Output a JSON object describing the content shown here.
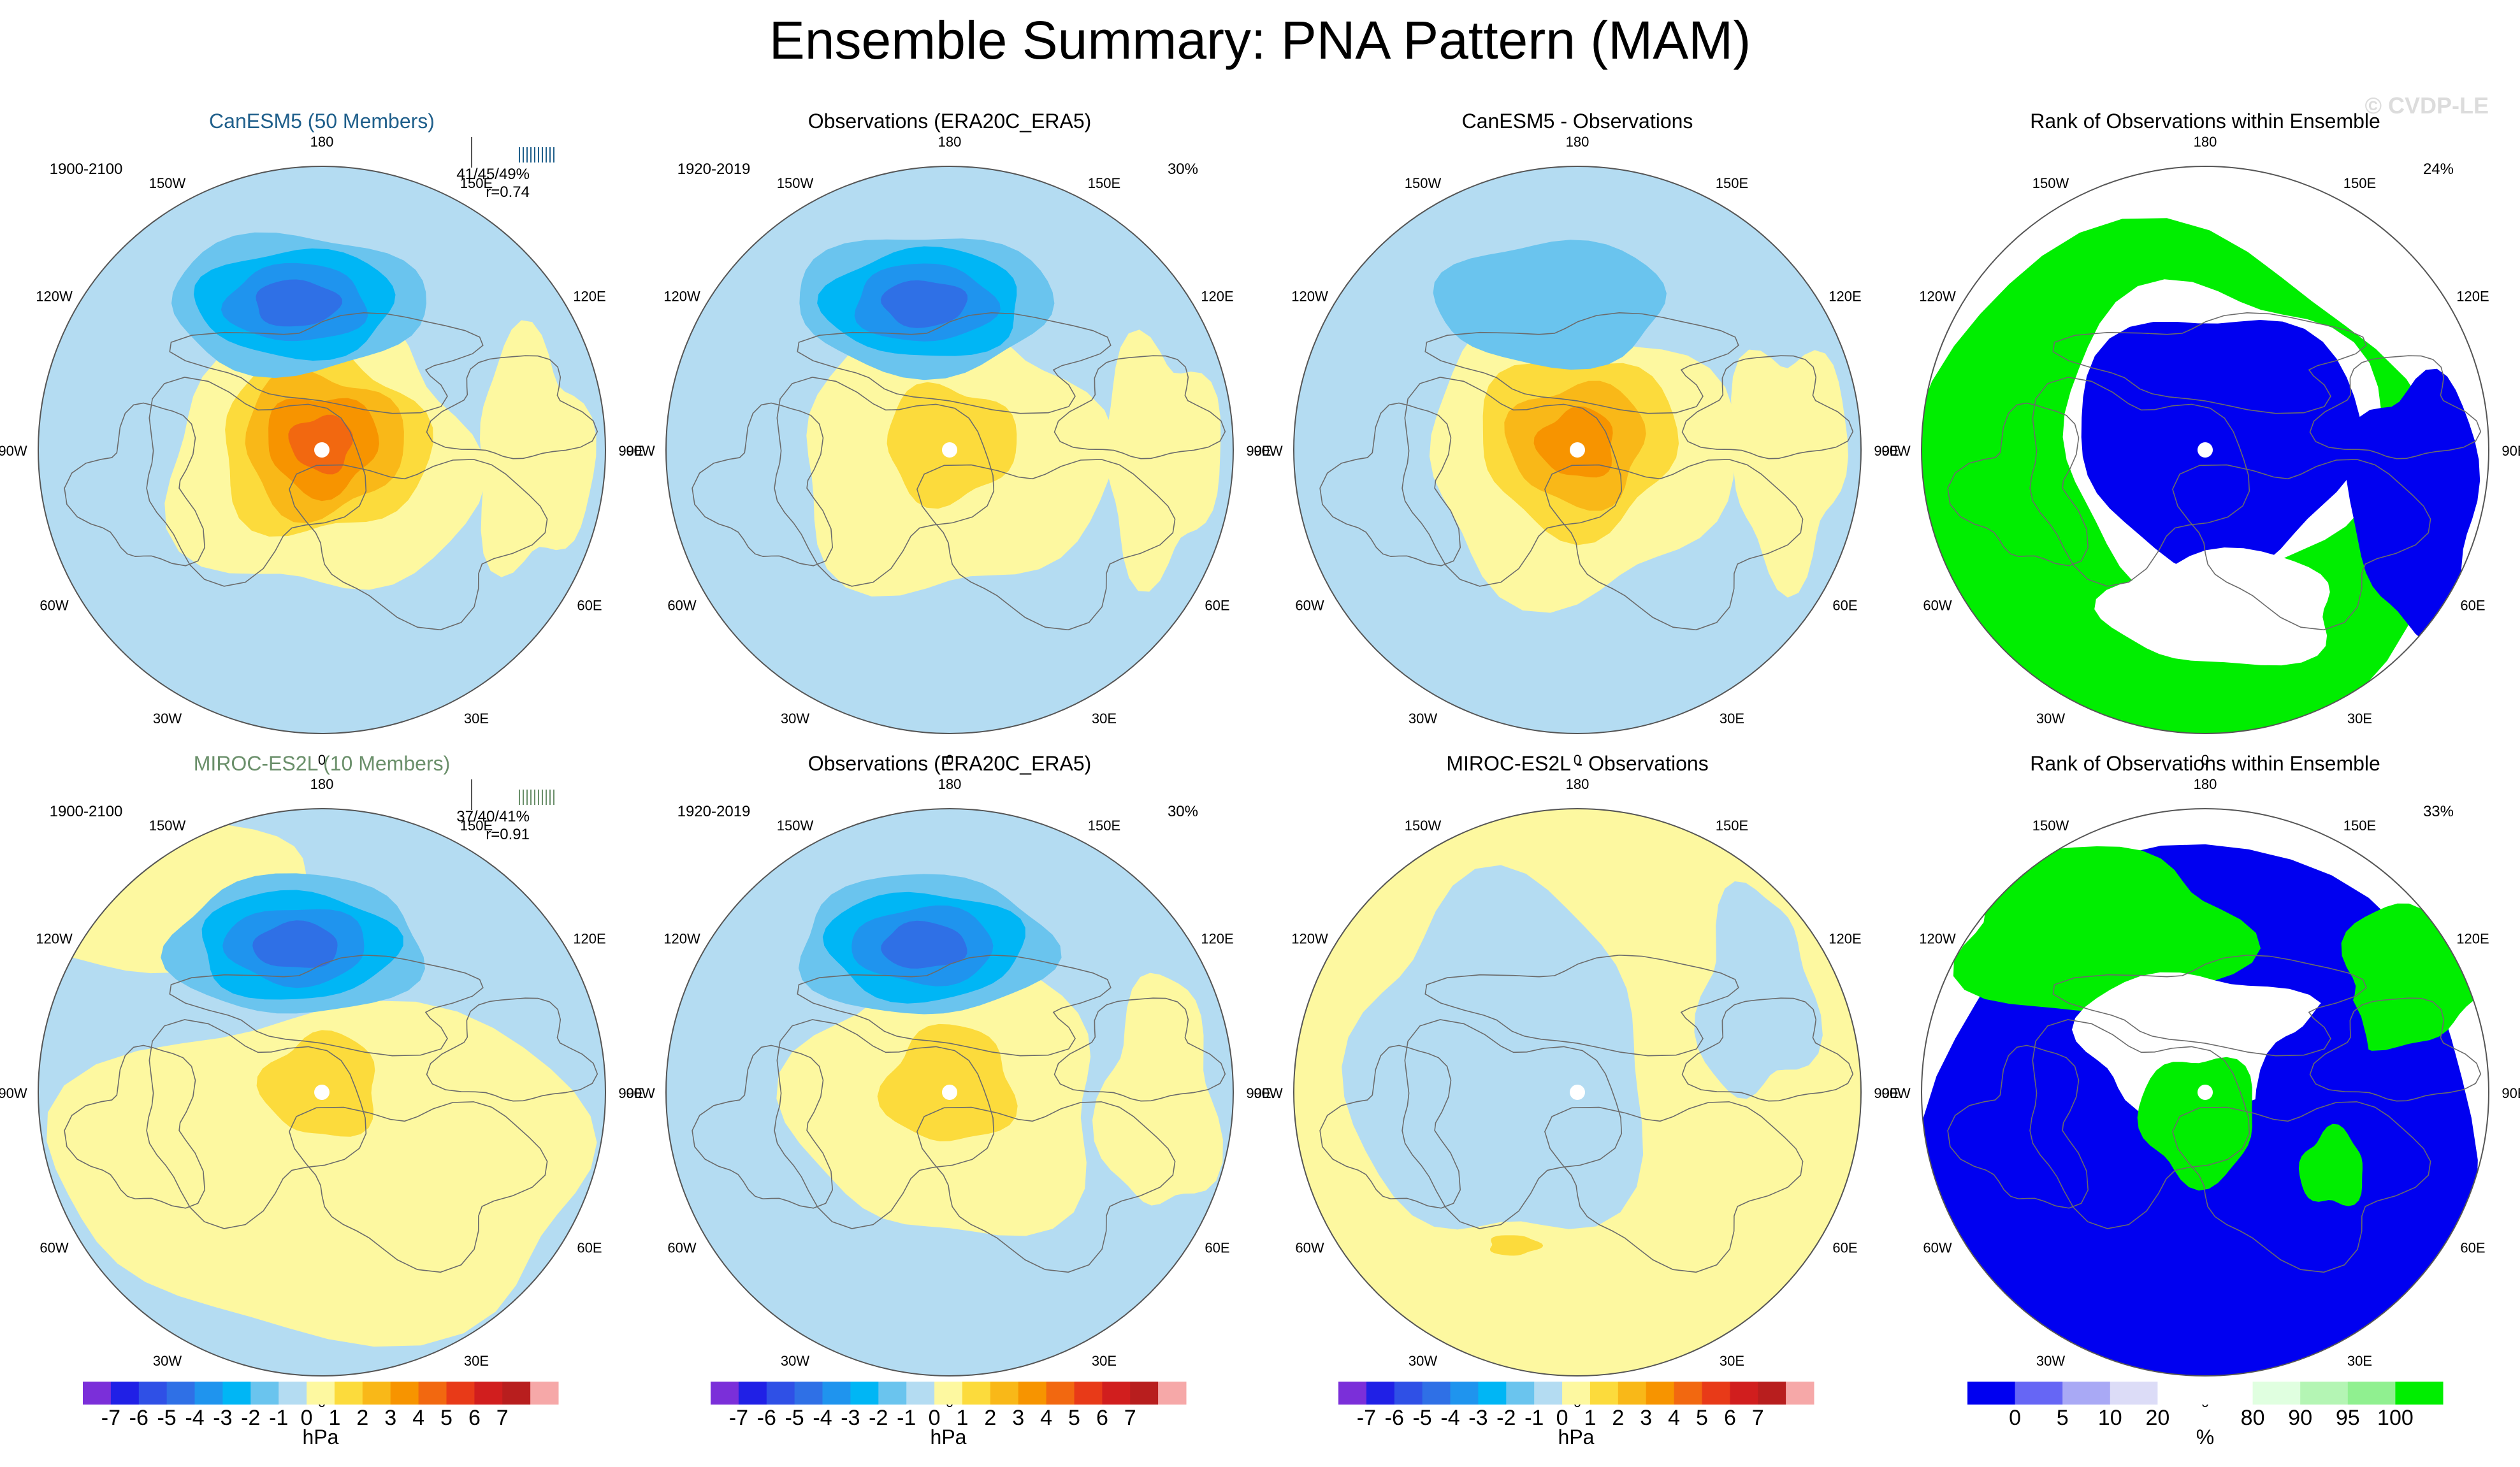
{
  "title": "Ensemble Summary: PNA Pattern (MAM)",
  "watermark": "© CVDP-LE",
  "colors": {
    "anomaly_scale": [
      "#7b2fd9",
      "#2020e6",
      "#2f50e6",
      "#2f70e6",
      "#1f94ee",
      "#00b6f5",
      "#6ac4ee",
      "#b4dcf2",
      "#fdf8a0",
      "#fcdb3c",
      "#f9b818",
      "#f79400",
      "#f26810",
      "#e83a18",
      "#d11e1e",
      "#b81e1e",
      "#f6a8a8"
    ],
    "rank_scale": [
      "#0000f0",
      "#6666f5",
      "#a9a9f5",
      "#dcdcf7",
      "#ffffff",
      "#ffffff",
      "#e0ffe0",
      "#b4f5b4",
      "#90f090",
      "#00ee00"
    ],
    "title_canesm": "#1f5f8b",
    "title_miroc": "#6a8f6a",
    "coast": "#6b6b6b"
  },
  "panels": [
    {
      "title": "CanESM5 (50 Members)",
      "title_color_key": "title_canesm",
      "period": "1900-2100",
      "stat1": "41/45/49%",
      "stat2": "r=0.74",
      "pct": "",
      "kind": "model",
      "field": {
        "pos_center": 4.6,
        "pos_extent": 1.0,
        "neg_center": -4.0,
        "neg_extent": 1.0
      }
    },
    {
      "title": "Observations (ERA20C_ERA5)",
      "title_color_key": "",
      "period": "1920-2019",
      "stat1": "",
      "stat2": "",
      "pct": "30%",
      "kind": "obs",
      "field": {
        "pos_center": 1.6,
        "pos_extent": 0.9,
        "neg_center": -4.2,
        "neg_extent": 1.0
      }
    },
    {
      "title": "CanESM5 - Observations",
      "title_color_key": "",
      "period": "",
      "stat1": "",
      "stat2": "",
      "pct": "",
      "kind": "diff",
      "field": {
        "pos_center": 3.0,
        "pos_extent": 1.0,
        "neg_center": -1.5,
        "neg_extent": 0.9
      }
    },
    {
      "title": "Rank of Observations within Ensemble",
      "title_color_key": "",
      "period": "",
      "stat1": "",
      "stat2": "",
      "pct": "24%",
      "kind": "rank",
      "field": {}
    },
    {
      "title": "MIROC-ES2L (10 Members)",
      "title_color_key": "title_miroc",
      "period": "1900-2100",
      "stat1": "37/40/41%",
      "stat2": "r=0.91",
      "pct": "",
      "kind": "model",
      "field": {
        "pos_center": 1.6,
        "pos_extent": 0.8,
        "neg_center": -4.1,
        "neg_extent": 1.0
      }
    },
    {
      "title": "Observations (ERA20C_ERA5)",
      "title_color_key": "",
      "period": "1920-2019",
      "stat1": "",
      "stat2": "",
      "pct": "30%",
      "kind": "obs",
      "field": {
        "pos_center": 1.6,
        "pos_extent": 0.9,
        "neg_center": -4.2,
        "neg_extent": 1.0
      }
    },
    {
      "title": "MIROC-ES2L - Observations",
      "title_color_key": "",
      "period": "",
      "stat1": "",
      "stat2": "",
      "pct": "",
      "kind": "diff2",
      "field": {
        "pos_center": 0.4,
        "pos_extent": 0.8,
        "neg_center": -0.3,
        "neg_extent": 0.8
      }
    },
    {
      "title": "Rank of Observations within Ensemble",
      "title_color_key": "",
      "period": "",
      "stat1": "",
      "stat2": "",
      "pct": "33%",
      "kind": "rank2",
      "field": {}
    }
  ],
  "lon_labels": [
    {
      "lon": 180,
      "text": "180"
    },
    {
      "lon": 150,
      "text": "150E"
    },
    {
      "lon": 120,
      "text": "120E"
    },
    {
      "lon": 90,
      "text": "90E"
    },
    {
      "lon": 60,
      "text": "60E"
    },
    {
      "lon": 30,
      "text": "30E"
    },
    {
      "lon": 0,
      "text": "0"
    },
    {
      "lon": -30,
      "text": "30W"
    },
    {
      "lon": -60,
      "text": "60W"
    },
    {
      "lon": -90,
      "text": "90W"
    },
    {
      "lon": -120,
      "text": "120W"
    },
    {
      "lon": -150,
      "text": "150W"
    }
  ],
  "chart_data": {
    "type": "heatmap",
    "title": "Ensemble Summary: PNA Pattern (MAM)",
    "projection": "north polar stereographic",
    "anomaly_colorbar": {
      "unit": "hPa",
      "ticks": [
        "-7",
        "-6",
        "-5",
        "-4",
        "-3",
        "-2",
        "-1",
        "0",
        "1",
        "2",
        "3",
        "4",
        "5",
        "6",
        "7"
      ],
      "n_colors": 17
    },
    "rank_colorbar": {
      "unit": "%",
      "ticks": [
        "0",
        "5",
        "10",
        "20",
        "80",
        "90",
        "95",
        "100"
      ],
      "boundaries": [
        0,
        5,
        10,
        20,
        50,
        80,
        90,
        95,
        100
      ]
    },
    "panels": [
      {
        "name": "CanESM5 (50 Members)",
        "years": "1900-2100",
        "percent_variance": "41/45/49%",
        "pattern_correlation": 0.74
      },
      {
        "name": "Observations (ERA20C_ERA5)",
        "years": "1920-2019",
        "percent_variance": "30%"
      },
      {
        "name": "CanESM5 - Observations"
      },
      {
        "name": "Rank of Observations within Ensemble",
        "percent": "24%"
      },
      {
        "name": "MIROC-ES2L (10 Members)",
        "years": "1900-2100",
        "percent_variance": "37/40/41%",
        "pattern_correlation": 0.91
      },
      {
        "name": "Observations (ERA20C_ERA5)",
        "years": "1920-2019",
        "percent_variance": "30%"
      },
      {
        "name": "MIROC-ES2L - Observations"
      },
      {
        "name": "Rank of Observations within Ensemble",
        "percent": "33%"
      }
    ]
  }
}
